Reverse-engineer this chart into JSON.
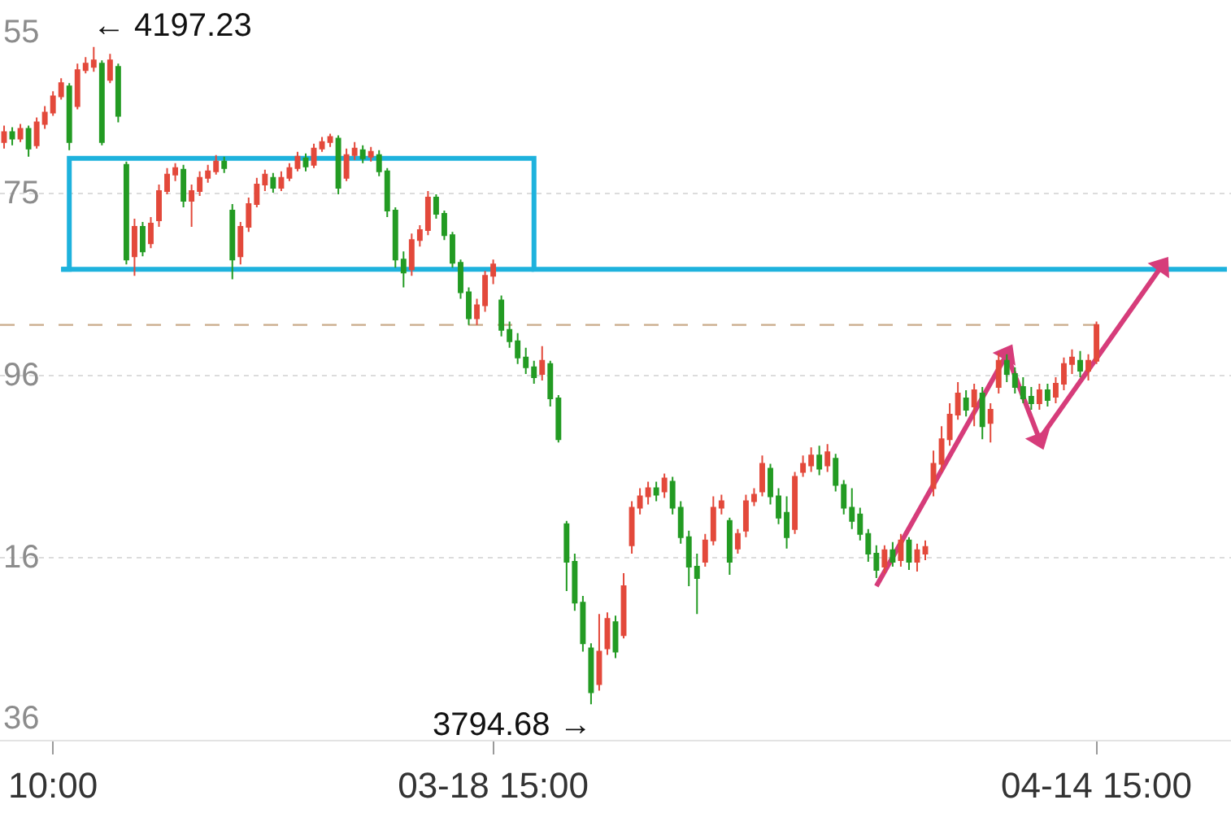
{
  "chart_data": {
    "type": "candlestick",
    "categories": [
      null,
      null,
      null,
      null,
      null,
      null,
      "10:00",
      null,
      null,
      null,
      null,
      null,
      null,
      null,
      null,
      null,
      null,
      null,
      null,
      null,
      null,
      null,
      null,
      null,
      null,
      null,
      null,
      null,
      null,
      null,
      null,
      null,
      null,
      null,
      null,
      null,
      null,
      null,
      null,
      null,
      null,
      null,
      null,
      null,
      null,
      null,
      null,
      null,
      null,
      null,
      null,
      null,
      null,
      null,
      null,
      null,
      null,
      null,
      null,
      null,
      "03-18 15:00",
      null,
      null,
      null,
      null,
      null,
      null,
      null,
      null,
      null,
      null,
      null,
      null,
      null,
      null,
      null,
      null,
      null,
      null,
      null,
      null,
      null,
      null,
      null,
      null,
      null,
      null,
      null,
      null,
      null,
      null,
      null,
      null,
      null,
      null,
      null,
      null,
      null,
      null,
      null,
      null,
      null,
      null,
      null,
      null,
      null,
      null,
      null,
      null,
      null,
      null,
      null,
      null,
      null,
      null,
      null,
      null,
      null,
      null,
      null,
      null,
      null,
      null,
      null,
      null,
      null,
      null,
      null,
      null,
      null,
      null,
      null,
      null,
      null,
      "04-14 15:00",
      null,
      null,
      null,
      null,
      null,
      null,
      null,
      null,
      null,
      null,
      null,
      null,
      null,
      null,
      null,
      null
    ],
    "ohlc": [
      [
        4139,
        4149,
        4135,
        4145
      ],
      [
        4145,
        4148,
        4137,
        4141
      ],
      [
        4141,
        4150,
        4139,
        4147
      ],
      [
        4147,
        4149,
        4130,
        4135
      ],
      [
        4137,
        4154,
        4135,
        4151
      ],
      [
        4150,
        4161,
        4147,
        4157
      ],
      [
        4157,
        4170,
        4155,
        4167
      ],
      [
        4167,
        4178,
        4165,
        4175
      ],
      [
        4173,
        4175,
        4134,
        4139
      ],
      [
        4161,
        4187,
        4159,
        4183
      ],
      [
        4183,
        4191,
        4181,
        4187
      ],
      [
        4185,
        4197.23,
        4182,
        4189
      ],
      [
        4187,
        4189,
        4137,
        4139
      ],
      [
        4177,
        4193,
        4175,
        4189
      ],
      [
        4185,
        4187,
        4151,
        4155
      ],
      [
        4125,
        4127,
        4064,
        4067
      ],
      [
        4069,
        4092,
        4057,
        4087
      ],
      [
        4087,
        4090,
        4069,
        4072
      ],
      [
        4077,
        4093,
        4074,
        4089
      ],
      [
        4091,
        4113,
        4087,
        4109
      ],
      [
        4109,
        4123,
        4107,
        4119
      ],
      [
        4119,
        4126,
        4115,
        4123
      ],
      [
        4122,
        4125,
        4099,
        4103
      ],
      [
        4103,
        4113,
        4087,
        4109
      ],
      [
        4109,
        4121,
        4106,
        4117
      ],
      [
        4117,
        4125,
        4114,
        4121
      ],
      [
        4121,
        4131,
        4119,
        4127
      ],
      [
        4127,
        4130,
        4120,
        4123
      ],
      [
        4097,
        4101,
        4055,
        4067
      ],
      [
        4069,
        4090,
        4064,
        4087
      ],
      [
        4087,
        4105,
        4084,
        4101
      ],
      [
        4101,
        4117,
        4099,
        4113
      ],
      [
        4113,
        4122,
        4109,
        4119
      ],
      [
        4117,
        4120,
        4108,
        4111
      ],
      [
        4111,
        4121,
        4109,
        4117
      ],
      [
        4117,
        4126,
        4115,
        4123
      ],
      [
        4123,
        4133,
        4121,
        4130
      ],
      [
        4129,
        4132,
        4121,
        4124
      ],
      [
        4125,
        4138,
        4123,
        4135
      ],
      [
        4135,
        4142,
        4133,
        4139
      ],
      [
        4139,
        4144,
        4136,
        4142
      ],
      [
        4141,
        4143,
        4107,
        4111
      ],
      [
        4117,
        4135,
        4115,
        4131
      ],
      [
        4131,
        4139,
        4128,
        4135
      ],
      [
        4134,
        4137,
        4126,
        4129
      ],
      [
        4130,
        4136,
        4127,
        4133
      ],
      [
        4131,
        4134,
        4118,
        4121
      ],
      [
        4121,
        4123,
        4093,
        4097
      ],
      [
        4097,
        4099,
        4062,
        4067
      ],
      [
        4067,
        4072,
        4050,
        4059
      ],
      [
        4061,
        4083,
        4057,
        4079
      ],
      [
        4079,
        4088,
        4075,
        4085
      ],
      [
        4085,
        4109,
        4082,
        4105
      ],
      [
        4105,
        4107,
        4092,
        4095
      ],
      [
        4095,
        4097,
        4079,
        4082
      ],
      [
        4082,
        4084,
        4062,
        4065
      ],
      [
        4065,
        4067,
        4043,
        4047
      ],
      [
        4047,
        4050,
        4027,
        4031
      ],
      [
        4031,
        4043,
        4027,
        4039
      ],
      [
        4039,
        4060,
        4035,
        4057
      ],
      [
        4057,
        4067,
        4052,
        4064
      ],
      [
        4042,
        4045,
        4020,
        4024
      ],
      [
        4024,
        4029,
        4013,
        4017
      ],
      [
        4017,
        4022,
        4003,
        4007
      ],
      [
        4007,
        4013,
        3997,
        4001
      ],
      [
        4001,
        4005,
        3991,
        3995
      ],
      [
        3997,
        4014,
        3993,
        4005
      ],
      [
        4003,
        4005,
        3977,
        3982
      ],
      [
        3982,
        3984,
        3955,
        3957
      ],
      [
        3905,
        3907,
        3864,
        3882
      ],
      [
        3882,
        3887,
        3852,
        3857
      ],
      [
        3857,
        3861,
        3827,
        3832
      ],
      [
        3829,
        3832,
        3794.68,
        3802
      ],
      [
        3807,
        3850,
        3803,
        3827
      ],
      [
        3829,
        3851,
        3825,
        3847
      ],
      [
        3845,
        3849,
        3823,
        3827
      ],
      [
        3837,
        3875,
        3835,
        3867
      ],
      [
        3892,
        3919,
        3887,
        3915
      ],
      [
        3915,
        3927,
        3911,
        3922
      ],
      [
        3922,
        3931,
        3917,
        3927
      ],
      [
        3927,
        3931,
        3919,
        3923
      ],
      [
        3925,
        3936,
        3921,
        3933
      ],
      [
        3931,
        3934,
        3911,
        3915
      ],
      [
        3915,
        3919,
        3893,
        3897
      ],
      [
        3897,
        3901,
        3867,
        3879
      ],
      [
        3879,
        3887,
        3850,
        3872
      ],
      [
        3882,
        3899,
        3879,
        3895
      ],
      [
        3895,
        3922,
        3892,
        3915
      ],
      [
        3915,
        3923,
        3911,
        3919
      ],
      [
        3907,
        3909,
        3874,
        3882
      ],
      [
        3890,
        3902,
        3887,
        3899
      ],
      [
        3901,
        3923,
        3897,
        3919
      ],
      [
        3919,
        3927,
        3916,
        3923
      ],
      [
        3925,
        3947,
        3922,
        3942
      ],
      [
        3939,
        3942,
        3917,
        3922
      ],
      [
        3922,
        3927,
        3905,
        3909
      ],
      [
        3912,
        3922,
        3890,
        3897
      ],
      [
        3902,
        3937,
        3899,
        3934
      ],
      [
        3937,
        3947,
        3934,
        3942
      ],
      [
        3941,
        3952,
        3937,
        3947
      ],
      [
        3947,
        3953,
        3935,
        3939
      ],
      [
        3941,
        3954,
        3937,
        3949
      ],
      [
        3945,
        3948,
        3925,
        3929
      ],
      [
        3929,
        3932,
        3911,
        3915
      ],
      [
        3915,
        3927,
        3902,
        3907
      ],
      [
        3911,
        3915,
        3895,
        3899
      ],
      [
        3899,
        3902,
        3882,
        3887
      ],
      [
        3887,
        3892,
        3872,
        3877
      ],
      [
        3879,
        3892,
        3875,
        3889
      ],
      [
        3889,
        3894,
        3879,
        3882
      ],
      [
        3883,
        3899,
        3879,
        3895
      ],
      [
        3895,
        3897,
        3877,
        3882
      ],
      [
        3882,
        3893,
        3876,
        3889
      ],
      [
        3887,
        3895,
        3883,
        3891
      ],
      [
        3927,
        3950,
        3922,
        3942
      ],
      [
        3942,
        3965,
        3937,
        3957
      ],
      [
        3957,
        3979,
        3953,
        3972
      ],
      [
        3972,
        3992,
        3969,
        3985
      ],
      [
        3982,
        3987,
        3971,
        3975
      ],
      [
        3977,
        3991,
        3965,
        3987
      ],
      [
        3985,
        3989,
        3957,
        3965
      ],
      [
        3967,
        3979,
        3955,
        3975
      ],
      [
        3989,
        4010,
        3985,
        4005
      ],
      [
        4005,
        4009,
        3992,
        3997
      ],
      [
        3997,
        4001,
        3985,
        3989
      ],
      [
        3989,
        3995,
        3979,
        3982
      ],
      [
        3983,
        3989,
        3975,
        3979
      ],
      [
        3979,
        3991,
        3975,
        3987
      ],
      [
        3987,
        3991,
        3977,
        3981
      ],
      [
        3983,
        3995,
        3979,
        3991
      ],
      [
        3991,
        4007,
        3987,
        4003
      ],
      [
        4003,
        4012,
        3997,
        4007
      ],
      [
        4005,
        4011,
        3995,
        3999
      ],
      [
        3999,
        4009,
        3993,
        4005
      ],
      [
        4005,
        4029,
        4003,
        4027
      ],
      null,
      null,
      null,
      null,
      null,
      null,
      null,
      null,
      null,
      null,
      null,
      null,
      null,
      null,
      null,
      null
    ],
    "colors": [
      "#e3493b",
      "#239b23",
      "#e3493b",
      "#239b23",
      "#e3493b",
      "#e3493b",
      "#e3493b",
      "#e3493b",
      "#239b23",
      "#e3493b",
      "#e3493b",
      "#e3493b",
      "#239b23",
      "#e3493b",
      "#239b23",
      "#239b23",
      "#e3493b",
      "#239b23",
      "#e3493b",
      "#e3493b",
      "#e3493b",
      "#e3493b",
      "#239b23",
      "#e3493b",
      "#e3493b",
      "#e3493b",
      "#e3493b",
      "#239b23",
      "#239b23",
      "#e3493b",
      "#e3493b",
      "#e3493b",
      "#e3493b",
      "#239b23",
      "#e3493b",
      "#e3493b",
      "#e3493b",
      "#239b23",
      "#e3493b",
      "#e3493b",
      "#e3493b",
      "#239b23",
      "#e3493b",
      "#e3493b",
      "#239b23",
      "#e3493b",
      "#239b23",
      "#239b23",
      "#239b23",
      "#239b23",
      "#e3493b",
      "#e3493b",
      "#e3493b",
      "#239b23",
      "#239b23",
      "#239b23",
      "#239b23",
      "#239b23",
      "#e3493b",
      "#e3493b",
      "#e3493b",
      "#239b23",
      "#239b23",
      "#239b23",
      "#239b23",
      "#239b23",
      "#e3493b",
      "#239b23",
      "#239b23",
      "#239b23",
      "#239b23",
      "#239b23",
      "#239b23",
      "#e3493b",
      "#e3493b",
      "#239b23",
      "#e3493b",
      "#e3493b",
      "#e3493b",
      "#e3493b",
      "#239b23",
      "#e3493b",
      "#239b23",
      "#239b23",
      "#239b23",
      "#239b23",
      "#e3493b",
      "#e3493b",
      "#e3493b",
      "#239b23",
      "#e3493b",
      "#e3493b",
      "#e3493b",
      "#e3493b",
      "#239b23",
      "#239b23",
      "#239b23",
      "#e3493b",
      "#e3493b",
      "#e3493b",
      "#239b23",
      "#e3493b",
      "#239b23",
      "#239b23",
      "#239b23",
      "#239b23",
      "#239b23",
      "#239b23",
      "#e3493b",
      "#239b23",
      "#e3493b",
      "#239b23",
      "#e3493b",
      "#e3493b",
      "#e3493b",
      "#e3493b",
      "#e3493b",
      "#e3493b",
      "#239b23",
      "#e3493b",
      "#239b23",
      "#e3493b",
      "#e3493b",
      "#239b23",
      "#239b23",
      "#239b23",
      "#239b23",
      "#e3493b",
      "#239b23",
      "#e3493b",
      "#e3493b",
      "#e3493b",
      "#239b23",
      "#e3493b",
      "#e3493b",
      null,
      null,
      null,
      null,
      null,
      null,
      null,
      null,
      null,
      null,
      null,
      null,
      null,
      null,
      null,
      null
    ],
    "series": [
      {
        "type": "step",
        "color": "#1eb2dd",
        "values": [
          null,
          null,
          null,
          null,
          null,
          null,
          null,
          4061,
          4129,
          null,
          null,
          null,
          null,
          null,
          null,
          null,
          null,
          null,
          null,
          null,
          null,
          null,
          null,
          null,
          null,
          null,
          null,
          null,
          null,
          null,
          null,
          null,
          null,
          null,
          null,
          null,
          null,
          null,
          null,
          null,
          null,
          null,
          null,
          null,
          null,
          null,
          null,
          null,
          null,
          null,
          null,
          null,
          null,
          null,
          null,
          null,
          null,
          null,
          null,
          null,
          null,
          null,
          null,
          null,
          null,
          4061,
          null,
          null,
          null,
          null,
          null,
          null,
          null,
          null,
          null,
          null,
          null,
          null,
          null,
          null,
          null,
          null,
          null,
          null,
          null,
          null,
          null,
          null,
          null,
          null,
          null,
          null,
          null,
          null,
          null,
          null,
          null,
          null,
          null,
          null,
          null,
          null,
          null,
          null,
          null,
          null,
          null,
          null,
          null,
          null,
          null,
          null,
          null,
          null,
          null,
          null,
          null,
          null,
          null,
          null,
          null,
          null,
          null,
          null,
          null,
          null,
          null,
          null,
          null,
          null,
          null,
          null,
          null,
          null,
          null,
          null,
          null,
          null,
          null,
          null,
          null,
          null,
          null,
          null,
          null,
          null,
          null,
          null,
          null,
          null,
          4061
        ]
      },
      {
        "type": "line",
        "color": "#1eb2dd",
        "values": [
          null,
          null,
          null,
          null,
          null,
          null,
          null,
          4061,
          null,
          null,
          null,
          null,
          null,
          null,
          null,
          null,
          null,
          null,
          null,
          null,
          null,
          null,
          null,
          null,
          null,
          null,
          null,
          null,
          null,
          null,
          null,
          null,
          null,
          null,
          null,
          null,
          null,
          null,
          null,
          null,
          null,
          null,
          null,
          null,
          null,
          null,
          null,
          null,
          null,
          null,
          null,
          null,
          null,
          null,
          null,
          null,
          null,
          null,
          null,
          null,
          null,
          null,
          null,
          null,
          null,
          4061,
          null,
          null,
          null,
          null,
          null,
          null,
          null,
          null,
          null,
          null,
          null,
          null,
          null,
          null,
          null,
          null,
          null,
          null,
          null,
          null,
          null,
          null,
          null,
          null,
          null,
          null,
          null,
          null,
          null,
          null,
          null,
          null,
          null,
          null,
          null,
          null,
          null,
          null,
          null,
          null,
          null,
          null,
          null,
          null,
          null,
          null,
          null,
          null,
          null,
          null,
          null,
          null,
          null,
          null,
          null,
          null,
          null,
          null,
          null,
          null,
          null,
          null,
          null,
          null,
          null,
          null,
          null,
          null,
          null,
          null,
          null,
          null,
          null,
          null,
          null,
          null,
          null,
          null,
          null,
          null,
          null,
          null,
          null,
          null,
          null
        ]
      },
      {
        "type": "line",
        "color": "#d63c7a",
        "marker": "triangle",
        "values": [
          null,
          null,
          null,
          null,
          null,
          null,
          null,
          null,
          null,
          null,
          null,
          null,
          null,
          null,
          null,
          null,
          null,
          null,
          null,
          null,
          null,
          null,
          null,
          null,
          null,
          null,
          null,
          null,
          null,
          null,
          null,
          null,
          null,
          null,
          null,
          null,
          null,
          null,
          null,
          null,
          null,
          null,
          null,
          null,
          null,
          null,
          null,
          null,
          null,
          null,
          null,
          null,
          null,
          null,
          null,
          null,
          null,
          null,
          null,
          null,
          null,
          null,
          null,
          null,
          null,
          null,
          null,
          null,
          null,
          null,
          null,
          null,
          null,
          null,
          null,
          null,
          null,
          null,
          null,
          null,
          null,
          null,
          null,
          null,
          null,
          null,
          null,
          null,
          null,
          null,
          null,
          null,
          null,
          null,
          null,
          null,
          null,
          null,
          null,
          null,
          null,
          null,
          null,
          null,
          null,
          null,
          null,
          3867,
          null,
          null,
          null,
          null,
          null,
          null,
          null,
          null,
          null,
          null,
          null,
          null,
          null,
          null,
          null,
          4009,
          null,
          null,
          null,
          3957,
          null,
          null,
          null,
          null,
          null,
          null,
          null,
          null,
          null,
          null,
          null,
          null,
          null,
          null,
          4063,
          null,
          null,
          null,
          null,
          null,
          null,
          null,
          null
        ]
      }
    ],
    "grid": "y",
    "ref_lines": [
      {
        "axis": "y",
        "value": 4027,
        "color": "#c9ab8a",
        "line_style": "dashed"
      }
    ],
    "annotations": [
      "55",
      "75",
      "96",
      "16",
      "36",
      "← 4197.23",
      "3794.68 →"
    ]
  }
}
